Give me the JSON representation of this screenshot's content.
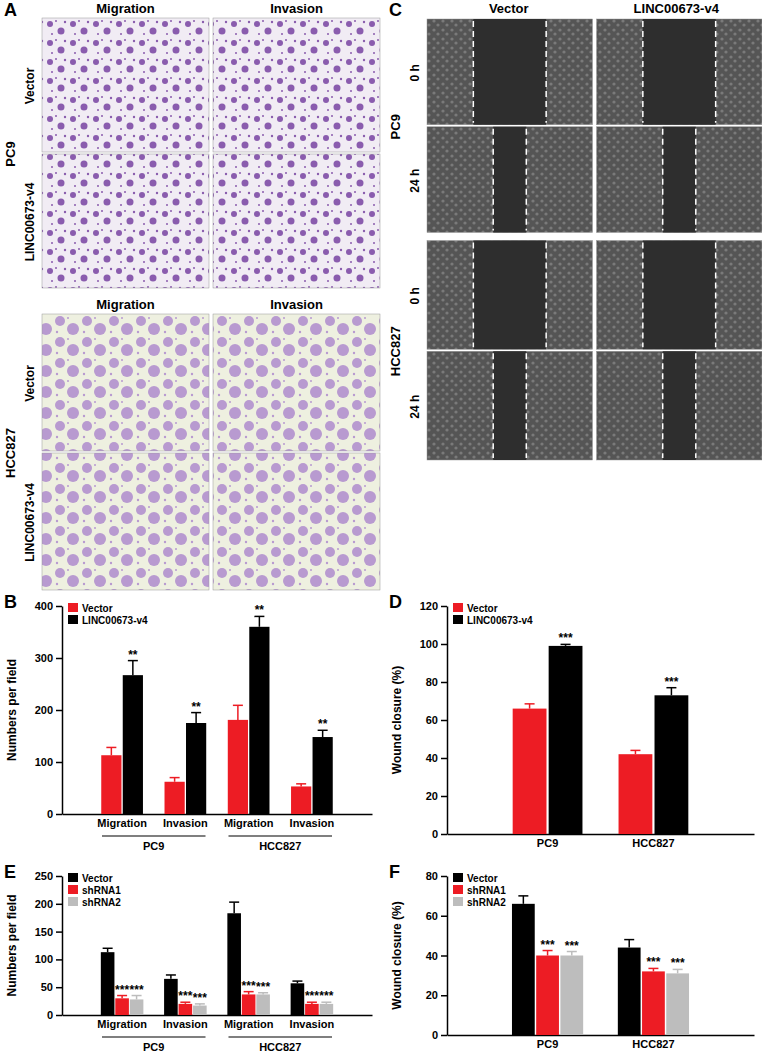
{
  "image_panels": [
    {
      "label": "A",
      "blocks": [
        {
          "group": "PC9",
          "columns": [
            "Migration",
            "Invasion"
          ],
          "rows": [
            "Vector",
            "LINC00673-v4"
          ]
        },
        {
          "group": "HCC827",
          "columns": [
            "Migration",
            "Invasion"
          ],
          "rows": [
            "Vector",
            "LINC00673-v4"
          ]
        }
      ]
    },
    {
      "label": "C",
      "columns": [
        "Vector",
        "LINC00673-v4"
      ],
      "blocks": [
        {
          "group": "PC9",
          "rows": [
            "0 h",
            "24 h"
          ]
        },
        {
          "group": "HCC827",
          "rows": [
            "0 h",
            "24 h"
          ]
        }
      ]
    }
  ],
  "chart_data": [
    {
      "type": "bar",
      "annotations": [
        "B"
      ],
      "y_label": "Numbers per field",
      "categories": [
        "Migration",
        "Invasion",
        "Migration",
        "Invasion"
      ],
      "category_groups": [
        "PC9",
        "PC9",
        "HCC827",
        "HCC827"
      ],
      "ylim": [
        0,
        400
      ],
      "yticks": [
        0,
        100,
        200,
        300,
        400
      ],
      "grid": false,
      "legend": "upper left",
      "series": [
        {
          "name": "Vector",
          "color": "#ed1c24",
          "values": [
            113,
            62,
            181,
            53
          ],
          "errors": [
            15,
            8,
            28,
            5
          ]
        },
        {
          "name": "LINC00673-v4",
          "color": "#000000",
          "values": [
            267,
            175,
            360,
            148
          ],
          "errors": [
            28,
            20,
            20,
            13
          ],
          "significance": [
            "**",
            "**",
            "**",
            "**"
          ]
        }
      ]
    },
    {
      "type": "bar",
      "annotations": [
        "D"
      ],
      "y_label": "Wound closure (%)",
      "categories": [
        "PC9",
        "HCC827"
      ],
      "ylim": [
        0,
        120
      ],
      "yticks": [
        0,
        20,
        40,
        60,
        80,
        100,
        120
      ],
      "grid": false,
      "legend": "upper left",
      "series": [
        {
          "name": "Vector",
          "color": "#ed1c24",
          "values": [
            66,
            42
          ],
          "errors": [
            2.5,
            2
          ]
        },
        {
          "name": "LINC00673-v4",
          "color": "#000000",
          "values": [
            99,
            73
          ],
          "errors": [
            0.8,
            4
          ],
          "significance": [
            "***",
            "***"
          ]
        }
      ]
    },
    {
      "type": "bar",
      "annotations": [
        "E"
      ],
      "y_label": "Numbers per field",
      "categories": [
        "Migration",
        "Invasion",
        "Migration",
        "Invasion"
      ],
      "category_groups": [
        "PC9",
        "PC9",
        "HCC827",
        "HCC827"
      ],
      "ylim": [
        0,
        250
      ],
      "yticks": [
        0,
        50,
        100,
        150,
        200,
        250
      ],
      "grid": false,
      "legend": "upper left",
      "series": [
        {
          "name": "Vector",
          "color": "#000000",
          "values": [
            113,
            65,
            183,
            57
          ],
          "errors": [
            7,
            7,
            20,
            4
          ]
        },
        {
          "name": "shRNA1",
          "color": "#ed1c24",
          "values": [
            30,
            20,
            37,
            20
          ],
          "errors": [
            5,
            3,
            5,
            3
          ],
          "significance": [
            "***",
            "***",
            "***",
            "***"
          ]
        },
        {
          "name": "shRNA2",
          "color": "#bdbdbd",
          "values": [
            28,
            17,
            37,
            20
          ],
          "errors": [
            7,
            3,
            3,
            3
          ],
          "significance": [
            "***",
            "***",
            "***",
            "***"
          ]
        }
      ]
    },
    {
      "type": "bar",
      "annotations": [
        "F"
      ],
      "y_label": "Wound closure (%)",
      "categories": [
        "PC9",
        "HCC827"
      ],
      "ylim": [
        0,
        80
      ],
      "yticks": [
        0,
        20,
        40,
        60,
        80
      ],
      "grid": false,
      "legend": "upper left",
      "series": [
        {
          "name": "Vector",
          "color": "#000000",
          "values": [
            66,
            44
          ],
          "errors": [
            4,
            4
          ]
        },
        {
          "name": "shRNA1",
          "color": "#ed1c24",
          "values": [
            40,
            32
          ],
          "errors": [
            2.5,
            1.5
          ],
          "significance": [
            "***",
            "***"
          ]
        },
        {
          "name": "shRNA2",
          "color": "#bdbdbd",
          "values": [
            40,
            31
          ],
          "errors": [
            2,
            2
          ],
          "significance": [
            "***",
            "***"
          ]
        }
      ]
    }
  ]
}
